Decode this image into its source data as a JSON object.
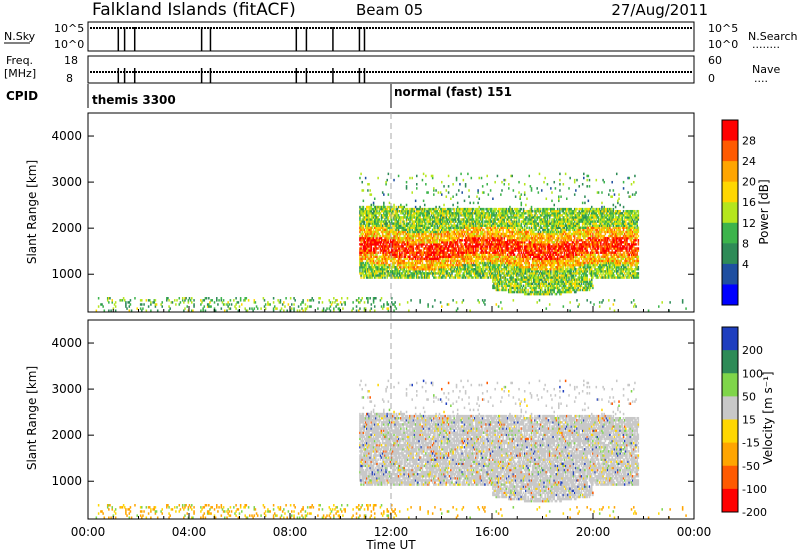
{
  "header": {
    "station": "Falkland Islands (fitACF)",
    "beam": "Beam 05",
    "date": "27/Aug/2011"
  },
  "panels": {
    "nsky": {
      "left_label": "N.Sky",
      "left_ticks": [
        "10^5",
        "10^0"
      ],
      "right_ticks": [
        "10^5",
        "10^0"
      ],
      "right_label": "N.Search",
      "right_dots": "........"
    },
    "freq": {
      "left_label_1": "Freq.",
      "left_label_2": "[MHz]",
      "left_ticks": [
        "18",
        "8"
      ],
      "right_ticks": [
        "60",
        "0"
      ],
      "right_label": "Nave",
      "right_dots": "...."
    },
    "cpid": {
      "label": "CPID",
      "modes": [
        "themis 3300",
        "normal (fast) 151"
      ]
    }
  },
  "chart_data": [
    {
      "type": "heatmap",
      "name": "power",
      "ylabel": "Slant Range [km]",
      "xlabel": "Time UT",
      "xlim": [
        0,
        24
      ],
      "ylim": [
        180,
        4500
      ],
      "y_ticks": [
        1000,
        2000,
        3000,
        4000
      ],
      "colorbar": {
        "label": "Power [dB]",
        "ticks": [
          28,
          24,
          20,
          16,
          12,
          8,
          4
        ],
        "colors": [
          "#ff0000",
          "#ff5a00",
          "#ffa500",
          "#ffd700",
          "#b5e61d",
          "#3cb44b",
          "#2e8b57",
          "#1f4fa0",
          "#0000ff"
        ]
      },
      "approx_regions": [
        {
          "t": [
            10.7,
            21.8
          ],
          "range_km": [
            700,
            2500
          ],
          "level": "mixed 8-28 dB, peak near 1500 km"
        },
        {
          "t": [
            0.5,
            12.0
          ],
          "range_km": [
            180,
            500
          ],
          "level": "sparse 4-16 dB"
        }
      ]
    },
    {
      "type": "heatmap",
      "name": "velocity",
      "ylabel": "Slant Range [km]",
      "xlabel": "Time UT",
      "xlim": [
        0,
        24
      ],
      "ylim": [
        180,
        4500
      ],
      "y_ticks": [
        1000,
        2000,
        3000,
        4000
      ],
      "colorbar": {
        "label": "Velocity [m s⁻¹]",
        "ticks": [
          200,
          100,
          50,
          15,
          -15,
          -50,
          -100,
          -200
        ],
        "colors": [
          "#1f3fbf",
          "#2e8b57",
          "#7fd54a",
          "#c8c8c8",
          "#ffd700",
          "#ffa500",
          "#ff5a00",
          "#ff0000"
        ]
      },
      "approx_regions": [
        {
          "t": [
            10.7,
            21.8
          ],
          "range_km": [
            600,
            2500
          ],
          "level": "mostly -15 to 15 m/s (gray)"
        },
        {
          "t": [
            0.5,
            12.0
          ],
          "range_km": [
            180,
            500
          ],
          "level": "sparse -50 to -15 m/s"
        }
      ]
    }
  ],
  "x_ticks": [
    "00:00",
    "04:00",
    "08:00",
    "12:00",
    "16:00",
    "20:00",
    "00:00"
  ],
  "x_axis_label": "Time UT"
}
